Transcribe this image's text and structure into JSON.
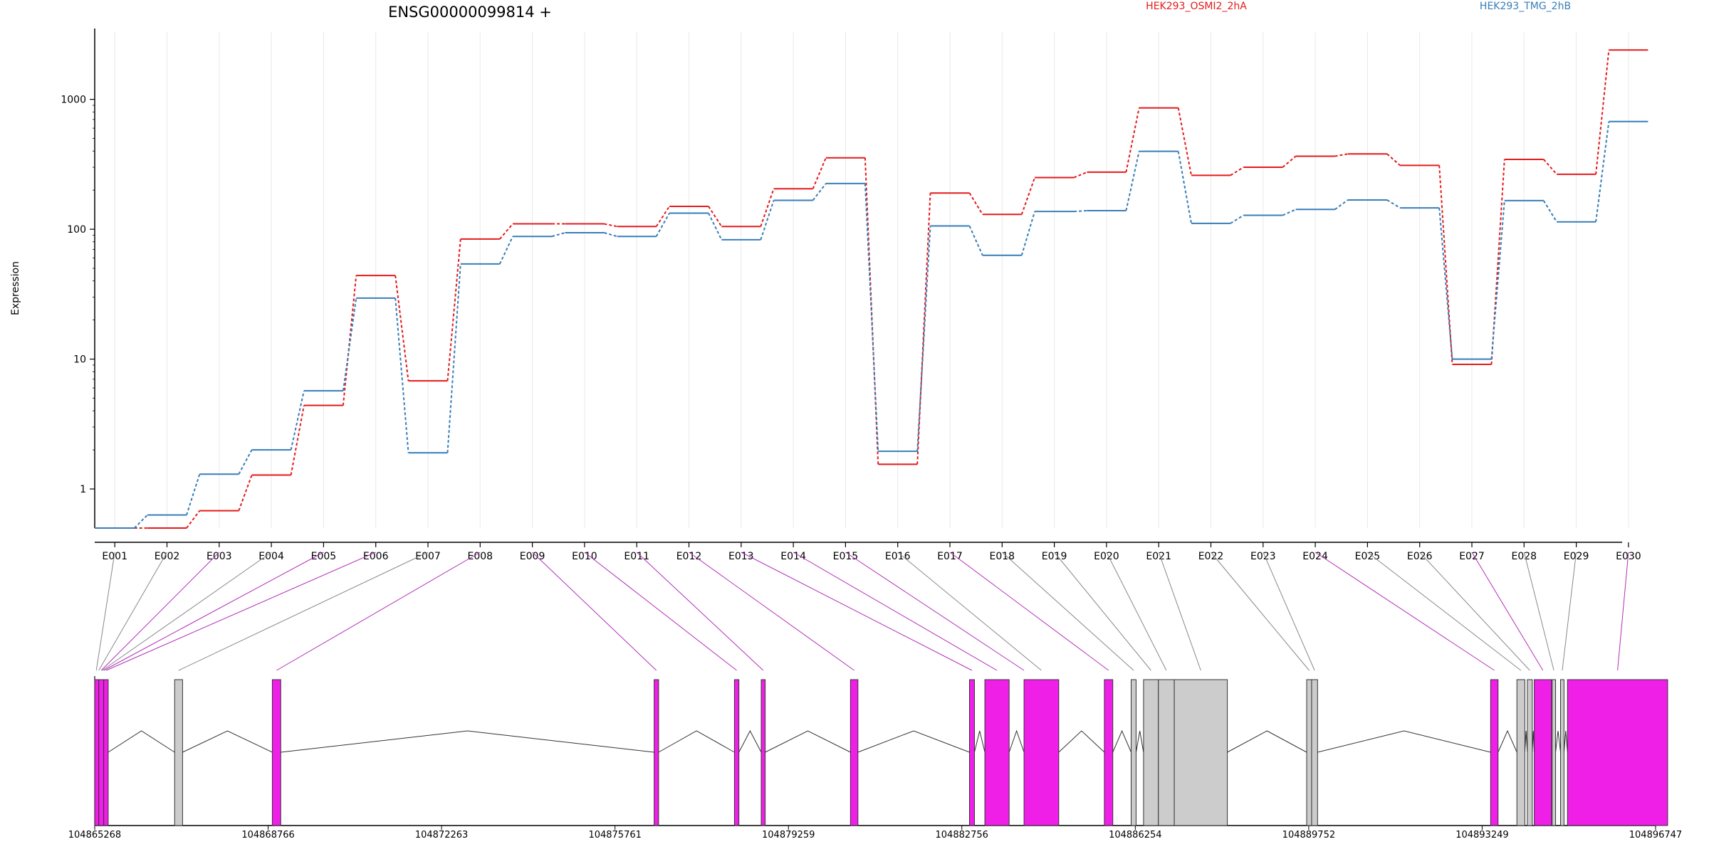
{
  "chart_data": {
    "type": "line",
    "title": "ENSG00000099814 +",
    "xlabel": "",
    "ylabel": "Expression",
    "y_scale": "log",
    "ylim": [
      0.5,
      3300
    ],
    "y_ticks": [
      1,
      10,
      100,
      1000
    ],
    "y_tick_labels": [
      "1",
      "10",
      "100",
      "1000"
    ],
    "grid": "vertical lines at exon ticks",
    "legend_position": "top",
    "categories": [
      "E001",
      "E002",
      "E003",
      "E004",
      "E005",
      "E006",
      "E007",
      "E008",
      "E009",
      "E010",
      "E011",
      "E012",
      "E013",
      "E014",
      "E015",
      "E016",
      "E017",
      "E018",
      "E019",
      "E020",
      "E021",
      "E022",
      "E023",
      "E024",
      "E025",
      "E026",
      "E027",
      "E028",
      "E029",
      "E030"
    ],
    "series": [
      {
        "name": "HEK293_OSMI2_2hA",
        "color": "#e41a1c",
        "values": [
          0.5,
          0.5,
          0.68,
          1.28,
          4.4,
          44,
          6.8,
          84,
          110,
          110,
          105,
          150,
          105,
          205,
          355,
          1.55,
          190,
          130,
          250,
          275,
          860,
          260,
          300,
          365,
          380,
          310,
          9.1,
          345,
          265,
          2400
        ]
      },
      {
        "name": "HEK293_TMG_2hB",
        "color": "#377eb8",
        "values": [
          0.5,
          0.63,
          1.3,
          2.0,
          5.7,
          29.5,
          1.9,
          54,
          88,
          94,
          88,
          133,
          83,
          167,
          225,
          1.95,
          106,
          63,
          137,
          139,
          398,
          111,
          128,
          142,
          168,
          146,
          10,
          166,
          114,
          675
        ]
      }
    ],
    "gene_model": {
      "genomic_ticks": [
        "104865268",
        "104868766",
        "104872263",
        "104875761",
        "104879259",
        "104882756",
        "104886254",
        "104889752",
        "104893249",
        "104896747"
      ],
      "highlight_color": "#f01fe8",
      "neutral_color": "#cccccc",
      "exon_blocks": [
        {
          "start": 104865268,
          "end": 104865350,
          "type": "highlight"
        },
        {
          "start": 104865350,
          "end": 104865450,
          "type": "highlight"
        },
        {
          "start": 104865450,
          "end": 104865540,
          "type": "highlight"
        },
        {
          "start": 104866880,
          "end": 104867040,
          "type": "neutral"
        },
        {
          "start": 104868850,
          "end": 104869020,
          "type": "highlight"
        },
        {
          "start": 104876550,
          "end": 104876640,
          "type": "highlight"
        },
        {
          "start": 104878170,
          "end": 104878260,
          "type": "highlight"
        },
        {
          "start": 104878710,
          "end": 104878790,
          "type": "highlight"
        },
        {
          "start": 104880510,
          "end": 104880660,
          "type": "highlight"
        },
        {
          "start": 104882910,
          "end": 104883010,
          "type": "highlight"
        },
        {
          "start": 104883220,
          "end": 104883710,
          "type": "highlight"
        },
        {
          "start": 104884010,
          "end": 104884710,
          "type": "highlight"
        },
        {
          "start": 104885630,
          "end": 104885800,
          "type": "highlight"
        },
        {
          "start": 104886170,
          "end": 104886270,
          "type": "neutral"
        },
        {
          "start": 104886420,
          "end": 104886720,
          "type": "neutral"
        },
        {
          "start": 104886720,
          "end": 104887040,
          "type": "neutral"
        },
        {
          "start": 104887040,
          "end": 104888110,
          "type": "neutral"
        },
        {
          "start": 104889710,
          "end": 104889810,
          "type": "neutral"
        },
        {
          "start": 104889810,
          "end": 104889930,
          "type": "neutral"
        },
        {
          "start": 104893420,
          "end": 104893570,
          "type": "highlight"
        },
        {
          "start": 104893950,
          "end": 104894110,
          "type": "neutral"
        },
        {
          "start": 104894160,
          "end": 104894260,
          "type": "neutral"
        },
        {
          "start": 104894300,
          "end": 104894650,
          "type": "highlight"
        },
        {
          "start": 104894660,
          "end": 104894730,
          "type": "neutral"
        },
        {
          "start": 104894830,
          "end": 104894900,
          "type": "neutral"
        },
        {
          "start": 104894970,
          "end": 104896990,
          "type": "highlight"
        }
      ],
      "exon_links": [
        {
          "exon": "E001",
          "pos": 104865300,
          "type": "neutral"
        },
        {
          "exon": "E002",
          "pos": 104865350,
          "type": "neutral"
        },
        {
          "exon": "E003",
          "pos": 104865400,
          "type": "highlight"
        },
        {
          "exon": "E004",
          "pos": 104865420,
          "type": "neutral"
        },
        {
          "exon": "E005",
          "pos": 104865450,
          "type": "highlight"
        },
        {
          "exon": "E006",
          "pos": 104865500,
          "type": "highlight"
        },
        {
          "exon": "E007",
          "pos": 104866960,
          "type": "neutral"
        },
        {
          "exon": "E008",
          "pos": 104868935,
          "type": "highlight"
        },
        {
          "exon": "E009",
          "pos": 104876595,
          "type": "highlight"
        },
        {
          "exon": "E010",
          "pos": 104878215,
          "type": "highlight"
        },
        {
          "exon": "E011",
          "pos": 104878750,
          "type": "highlight"
        },
        {
          "exon": "E012",
          "pos": 104880585,
          "type": "highlight"
        },
        {
          "exon": "E013",
          "pos": 104882960,
          "type": "highlight"
        },
        {
          "exon": "E014",
          "pos": 104883465,
          "type": "highlight"
        },
        {
          "exon": "E015",
          "pos": 104884010,
          "type": "highlight"
        },
        {
          "exon": "E016",
          "pos": 104884360,
          "type": "neutral"
        },
        {
          "exon": "E017",
          "pos": 104885715,
          "type": "highlight"
        },
        {
          "exon": "E018",
          "pos": 104886220,
          "type": "neutral"
        },
        {
          "exon": "E019",
          "pos": 104886570,
          "type": "neutral"
        },
        {
          "exon": "E020",
          "pos": 104886880,
          "type": "neutral"
        },
        {
          "exon": "E021",
          "pos": 104887575,
          "type": "neutral"
        },
        {
          "exon": "E022",
          "pos": 104889760,
          "type": "neutral"
        },
        {
          "exon": "E023",
          "pos": 104889870,
          "type": "neutral"
        },
        {
          "exon": "E024",
          "pos": 104893495,
          "type": "highlight"
        },
        {
          "exon": "E025",
          "pos": 104894030,
          "type": "neutral"
        },
        {
          "exon": "E026",
          "pos": 104894210,
          "type": "neutral"
        },
        {
          "exon": "E027",
          "pos": 104894475,
          "type": "highlight"
        },
        {
          "exon": "E028",
          "pos": 104894695,
          "type": "neutral"
        },
        {
          "exon": "E029",
          "pos": 104894865,
          "type": "neutral"
        },
        {
          "exon": "E030",
          "pos": 104895980,
          "type": "highlight"
        }
      ]
    }
  }
}
